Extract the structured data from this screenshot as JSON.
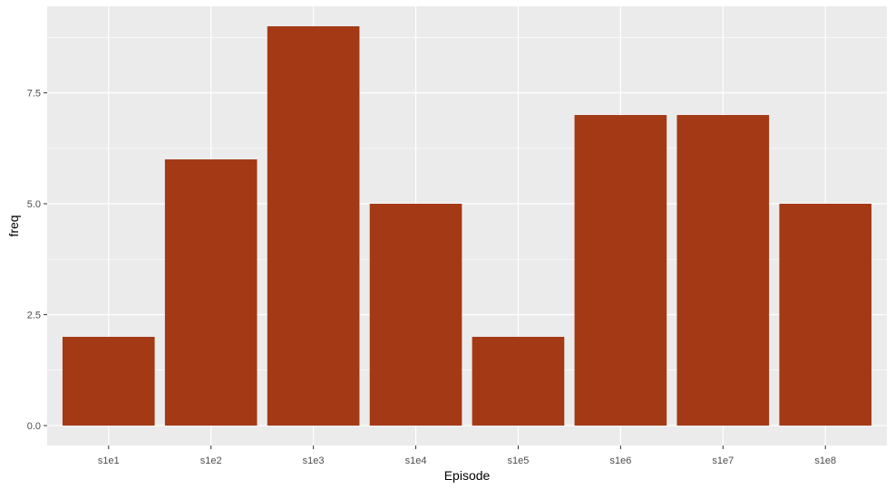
{
  "chart_data": {
    "type": "bar",
    "title": "",
    "xlabel": "Episode",
    "ylabel": "freq",
    "categories": [
      "s1e1",
      "s1e2",
      "s1e3",
      "s1e4",
      "s1e5",
      "s1e6",
      "s1e7",
      "s1e8"
    ],
    "values": [
      2,
      6,
      9,
      5,
      2,
      7,
      7,
      5
    ],
    "ylim": [
      -0.45,
      9.45
    ],
    "y_ticks": [
      0,
      2.5,
      5,
      7.5
    ],
    "y_tick_labels": [
      "0.0",
      "2.5",
      "5.0",
      "7.5"
    ],
    "y_minor_ticks": [
      1.25,
      3.75,
      6.25,
      8.75
    ],
    "grid": true,
    "legend": "none"
  },
  "colors": {
    "bar_fill": "#A33915",
    "panel_background": "#EBEBEB",
    "grid_line": "#FFFFFF"
  }
}
